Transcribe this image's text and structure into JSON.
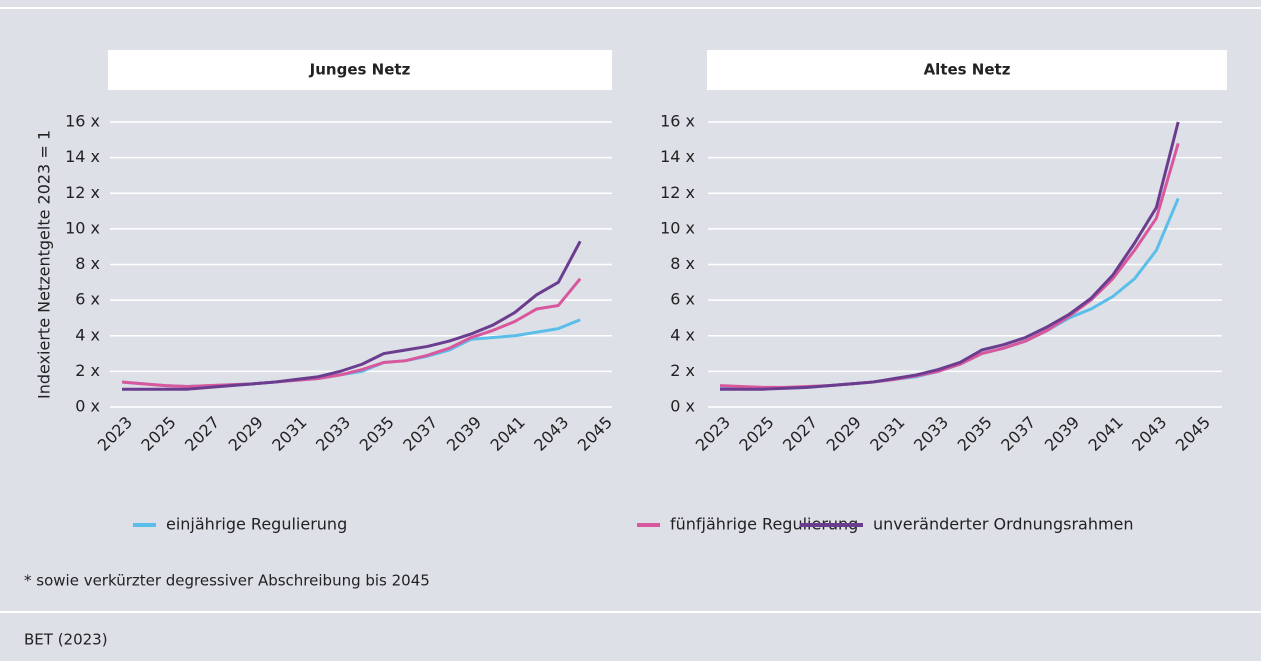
{
  "chart_data": [
    {
      "type": "line",
      "title": "Junges Netz",
      "y_label": "Indexierte Netzentgelte 2023 = 1",
      "x": [
        2023,
        2024,
        2025,
        2026,
        2027,
        2028,
        2029,
        2030,
        2031,
        2032,
        2033,
        2034,
        2035,
        2036,
        2037,
        2038,
        2039,
        2040,
        2041,
        2042,
        2043,
        2044
      ],
      "xlim": [
        2023,
        2045
      ],
      "xticks": [
        2023,
        2025,
        2027,
        2029,
        2031,
        2033,
        2035,
        2037,
        2039,
        2041,
        2043,
        2045
      ],
      "ylim": [
        0,
        16
      ],
      "yticks": [
        {
          "value": 0,
          "label": "0 x"
        },
        {
          "value": 2,
          "label": "2 x"
        },
        {
          "value": 4,
          "label": "4 x"
        },
        {
          "value": 6,
          "label": "6 x"
        },
        {
          "value": 8,
          "label": "8 x"
        },
        {
          "value": 10,
          "label": "10 x"
        },
        {
          "value": 12,
          "label": "12 x"
        },
        {
          "value": 14,
          "label": "14 x"
        },
        {
          "value": 16,
          "label": "16 x"
        }
      ],
      "grid": true,
      "series": [
        {
          "name": "einjährige Regulierung",
          "color": "#5bbde9",
          "values": [
            1.4,
            1.3,
            1.2,
            1.15,
            1.2,
            1.25,
            1.3,
            1.4,
            1.5,
            1.6,
            1.8,
            2.0,
            2.5,
            2.6,
            2.85,
            3.2,
            3.8,
            3.9,
            4.0,
            4.2,
            4.4,
            4.9
          ]
        },
        {
          "name": "fünfjährige Regulierung",
          "color": "#d9589d",
          "values": [
            1.4,
            1.3,
            1.2,
            1.15,
            1.2,
            1.25,
            1.3,
            1.4,
            1.5,
            1.6,
            1.8,
            2.1,
            2.5,
            2.6,
            2.9,
            3.3,
            3.9,
            4.3,
            4.8,
            5.5,
            5.7,
            7.2
          ]
        },
        {
          "name": "unveränderter Ordnungsrahmen",
          "color": "#6b3d8f",
          "values": [
            1.0,
            1.0,
            1.0,
            1.0,
            1.1,
            1.2,
            1.3,
            1.4,
            1.55,
            1.7,
            2.0,
            2.4,
            3.0,
            3.2,
            3.4,
            3.7,
            4.1,
            4.6,
            5.3,
            6.3,
            7.0,
            9.3
          ]
        }
      ]
    },
    {
      "type": "line",
      "title": "Altes Netz",
      "x": [
        2023,
        2024,
        2025,
        2026,
        2027,
        2028,
        2029,
        2030,
        2031,
        2032,
        2033,
        2034,
        2035,
        2036,
        2037,
        2038,
        2039,
        2040,
        2041,
        2042,
        2043,
        2044
      ],
      "xlim": [
        2023,
        2045
      ],
      "xticks": [
        2023,
        2025,
        2027,
        2029,
        2031,
        2033,
        2035,
        2037,
        2039,
        2041,
        2043,
        2045
      ],
      "ylim": [
        0,
        16
      ],
      "yticks": [
        {
          "value": 0,
          "label": "0 x"
        },
        {
          "value": 2,
          "label": "2 x"
        },
        {
          "value": 4,
          "label": "4 x"
        },
        {
          "value": 6,
          "label": "6 x"
        },
        {
          "value": 8,
          "label": "8 x"
        },
        {
          "value": 10,
          "label": "10 x"
        },
        {
          "value": 12,
          "label": "12 x"
        },
        {
          "value": 14,
          "label": "14 x"
        },
        {
          "value": 16,
          "label": "16 x"
        }
      ],
      "grid": true,
      "series": [
        {
          "name": "einjährige Regulierung",
          "color": "#5bbde9",
          "values": [
            1.1,
            1.05,
            1.05,
            1.05,
            1.1,
            1.2,
            1.3,
            1.4,
            1.55,
            1.7,
            2.0,
            2.4,
            3.0,
            3.3,
            3.7,
            4.3,
            5.0,
            5.5,
            6.2,
            7.2,
            8.8,
            11.7
          ]
        },
        {
          "name": "fünfjährige Regulierung",
          "color": "#d9589d",
          "values": [
            1.2,
            1.15,
            1.1,
            1.1,
            1.15,
            1.2,
            1.3,
            1.4,
            1.55,
            1.75,
            2.0,
            2.4,
            3.0,
            3.3,
            3.7,
            4.3,
            5.1,
            6.0,
            7.2,
            8.8,
            10.6,
            14.8
          ]
        },
        {
          "name": "unveränderter Ordnungsrahmen",
          "color": "#6b3d8f",
          "values": [
            1.0,
            1.0,
            1.0,
            1.05,
            1.1,
            1.2,
            1.3,
            1.4,
            1.6,
            1.8,
            2.1,
            2.5,
            3.2,
            3.5,
            3.9,
            4.5,
            5.2,
            6.1,
            7.4,
            9.2,
            11.2,
            16.0
          ]
        }
      ]
    }
  ],
  "footnote": "* sowie verkürzter degressiver Abschreibung bis 2045",
  "source": "BET (2023)"
}
